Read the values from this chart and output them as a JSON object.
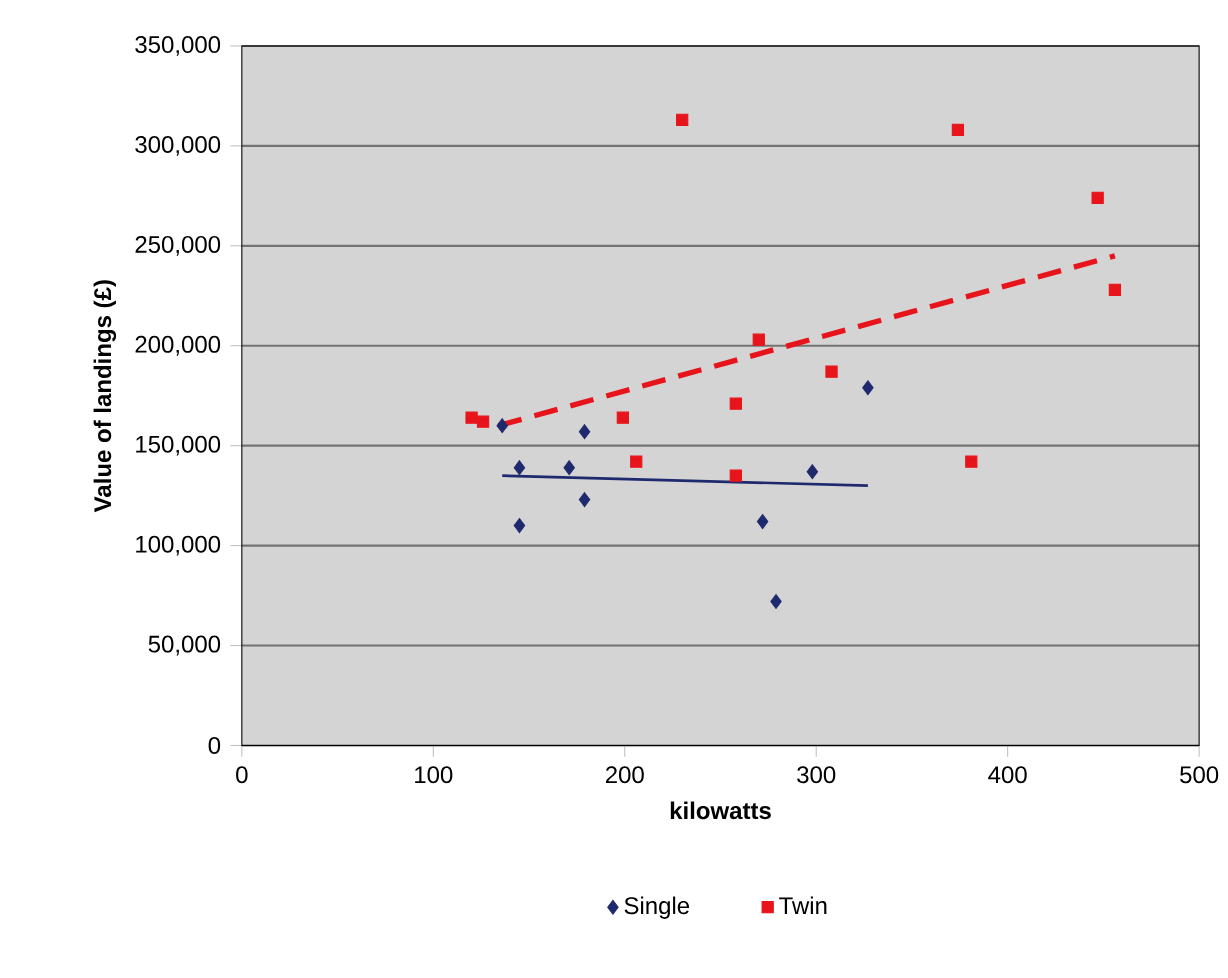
{
  "chart_data": {
    "type": "scatter",
    "xlabel": "kilowatts",
    "ylabel": "Value of landings (£)",
    "xlim": [
      0,
      500
    ],
    "xticks": [
      0,
      100,
      200,
      300,
      400,
      500
    ],
    "ylim": [
      0,
      350000
    ],
    "yticks": [
      {
        "value": 0,
        "label": "0"
      },
      {
        "value": 50000,
        "label": "50,000"
      },
      {
        "value": 100000,
        "label": "100,000"
      },
      {
        "value": 150000,
        "label": "150,000"
      },
      {
        "value": 200000,
        "label": "200,000"
      },
      {
        "value": 250000,
        "label": "250,000"
      },
      {
        "value": 300000,
        "label": "300,000"
      },
      {
        "value": 350000,
        "label": "350,000"
      }
    ],
    "grid": "y",
    "legend": "bottom",
    "series": [
      {
        "name": "Single",
        "marker": "diamond",
        "color": "#1f2a6e",
        "x": [
          136,
          145,
          145,
          171,
          179,
          179,
          272,
          279,
          298,
          327
        ],
        "values": [
          160000,
          139000,
          110000,
          139000,
          157000,
          123000,
          112000,
          72000,
          137000,
          179000
        ]
      },
      {
        "name": "Twin",
        "marker": "square",
        "color": "#e8141b",
        "x": [
          120,
          126,
          199,
          206,
          230,
          258,
          258,
          270,
          308,
          374,
          381,
          447,
          456
        ],
        "values": [
          164000,
          162000,
          164000,
          142000,
          313000,
          171000,
          135000,
          203000,
          187000,
          308000,
          142000,
          274000,
          228000
        ]
      },
      {
        "type": "line",
        "marker": "none",
        "line_style": "solid",
        "color": "#1f2a6e",
        "x": [
          136,
          327
        ],
        "values": [
          135000,
          130000
        ]
      },
      {
        "type": "line",
        "marker": "none",
        "line_style": "dashed",
        "color": "#e8141b",
        "x": [
          134,
          456
        ],
        "values": [
          160000,
          245000
        ]
      }
    ]
  }
}
